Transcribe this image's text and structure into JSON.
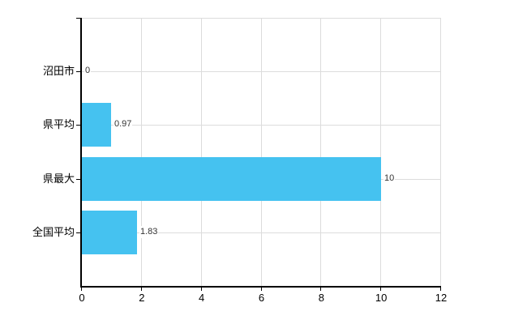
{
  "chart_data": {
    "type": "bar",
    "orientation": "horizontal",
    "title": "",
    "xlabel": "",
    "ylabel": "",
    "categories": [
      "沼田市",
      "県平均",
      "県最大",
      "全国平均"
    ],
    "values": [
      0,
      0.97,
      10,
      1.83
    ],
    "value_labels": [
      "0",
      "0.97",
      "10",
      "1.83"
    ],
    "x_ticks": [
      0,
      2,
      4,
      6,
      8,
      10,
      12
    ],
    "x_tick_labels": [
      "0",
      "2",
      "4",
      "6",
      "8",
      "10",
      "12"
    ],
    "xlim": [
      0,
      12
    ],
    "grid": "on",
    "legend": "none",
    "colors": {
      "bar": "#45C2F0",
      "grid": "#dcdcdc",
      "axis": "#000000",
      "category_text": "#000000",
      "value_text": "#333333",
      "background": "#ffffff"
    }
  }
}
